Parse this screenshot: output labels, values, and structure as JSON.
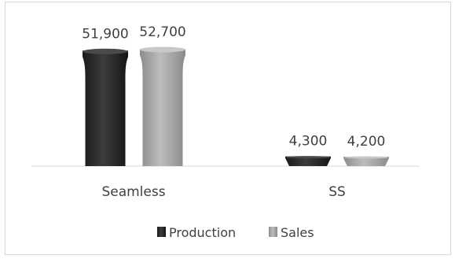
{
  "chart_data": {
    "type": "bar",
    "categories": [
      "Seamless",
      "SS"
    ],
    "series": [
      {
        "name": "Production",
        "values": [
          51900,
          4300
        ],
        "color": "#2b2b2b"
      },
      {
        "name": "Sales",
        "values": [
          52700,
          4200
        ],
        "color": "#a6a6a6"
      }
    ],
    "data_labels": [
      [
        "51,900",
        "4,300"
      ],
      [
        "52,700",
        "4,200"
      ]
    ],
    "ylim": [
      0,
      52700
    ],
    "legend": "bottom",
    "grid": false,
    "title": "",
    "xlabel": "",
    "ylabel": ""
  }
}
